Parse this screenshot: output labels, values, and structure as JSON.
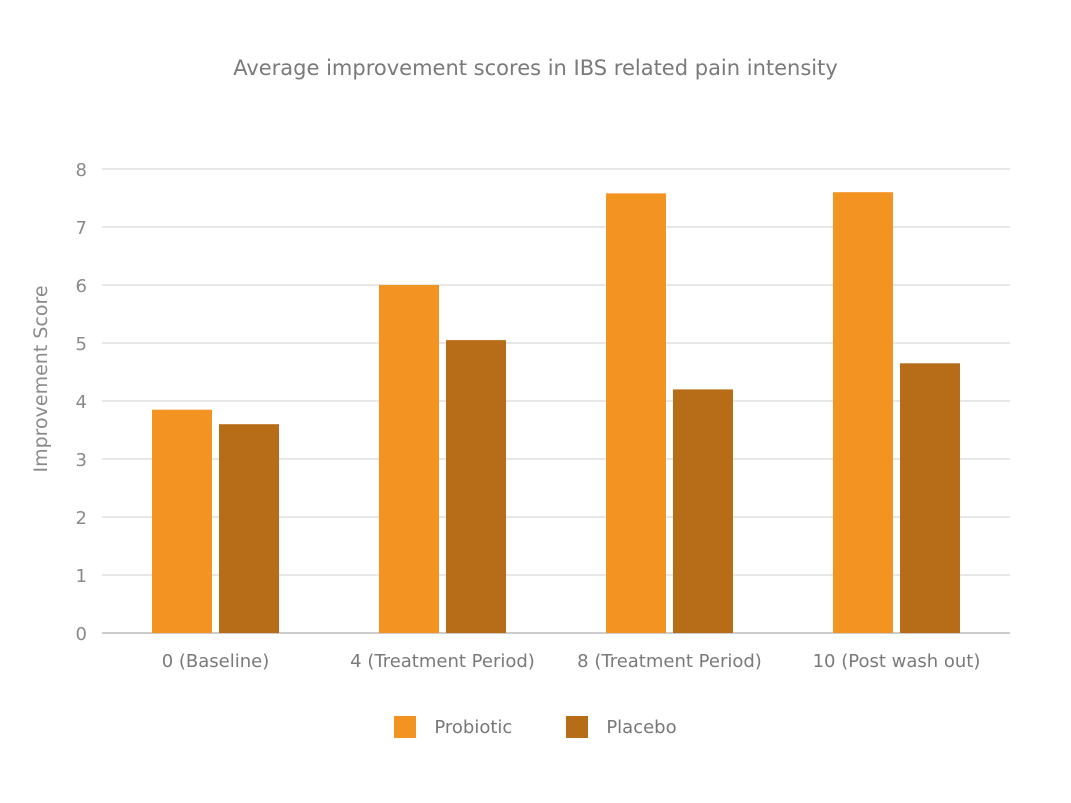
{
  "chart_data": {
    "type": "bar",
    "title": "Average improvement scores in IBS related pain intensity",
    "xlabel": "",
    "ylabel": "Improvement Score",
    "ylim": [
      0,
      8
    ],
    "yticks": [
      0,
      1,
      2,
      3,
      4,
      5,
      6,
      7,
      8
    ],
    "grid": true,
    "legend_position": "bottom",
    "categories": [
      "0 (Baseline)",
      "4 (Treatment Period)",
      "8 (Treatment Period)",
      "10 (Post wash out)"
    ],
    "series": [
      {
        "name": "Probiotic",
        "color": "#f39322",
        "values": [
          3.85,
          6.0,
          7.58,
          7.6
        ]
      },
      {
        "name": "Placebo",
        "color": "#b76d18",
        "values": [
          3.6,
          5.05,
          4.2,
          4.65
        ]
      }
    ]
  }
}
